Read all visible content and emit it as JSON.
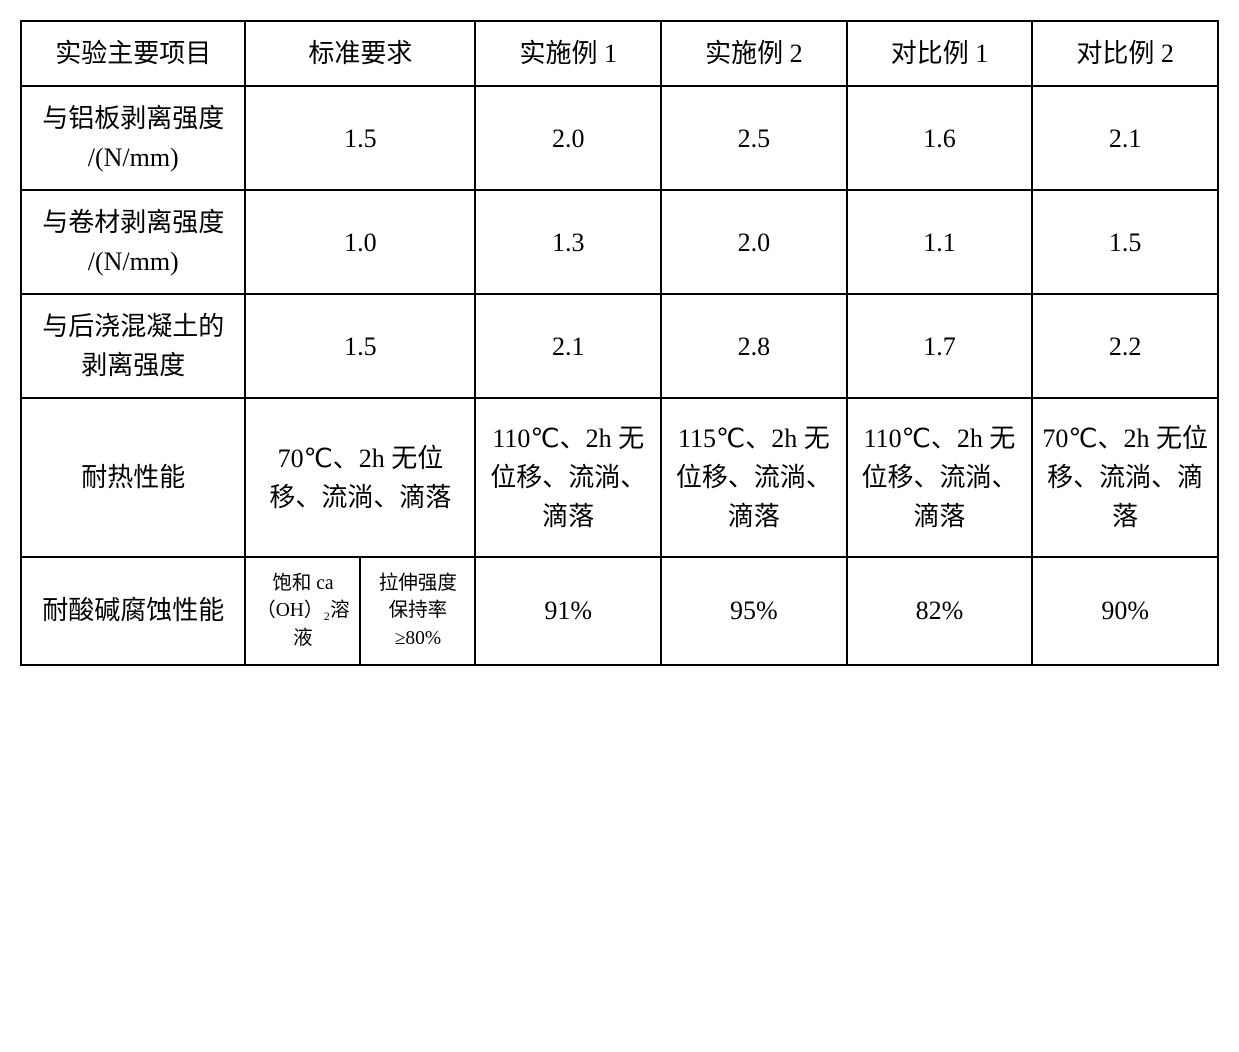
{
  "table": {
    "columns": {
      "main_item": "实验主要项目",
      "standard": "标准要求",
      "example1": "实施例 1",
      "example2": "实施例 2",
      "compare1": "对比例 1",
      "compare2": "对比例 2"
    },
    "rows": {
      "row1": {
        "label": "与铝板剥离强度 /(N/mm)",
        "standard": "1.5",
        "ex1": "2.0",
        "ex2": "2.5",
        "cmp1": "1.6",
        "cmp2": "2.1"
      },
      "row2": {
        "label": "与卷材剥离强度 /(N/mm)",
        "standard": "1.0",
        "ex1": "1.3",
        "ex2": "2.0",
        "cmp1": "1.1",
        "cmp2": "1.5"
      },
      "row3": {
        "label": "与后浇混凝土的剥离强度",
        "standard": "1.5",
        "ex1": "2.1",
        "ex2": "2.8",
        "cmp1": "1.7",
        "cmp2": "2.2"
      },
      "row4": {
        "label": "耐热性能",
        "standard": "70℃、2h 无位移、流淌、滴落",
        "ex1": "110℃、2h 无位移、流淌、滴落",
        "ex2": "115℃、2h 无位移、流淌、滴落",
        "cmp1": "110℃、2h 无位移、流淌、滴落",
        "cmp2": "70℃、2h 无位移、流淌、滴落"
      },
      "row5": {
        "label": "耐酸碱腐蚀性能",
        "standard_a": "饱和 ca（OH）₂溶液",
        "standard_b": "拉伸强度保持率≥80%",
        "ex1": "91%",
        "ex2": "95%",
        "cmp1": "82%",
        "cmp2": "90%"
      }
    },
    "styling": {
      "border_color": "#000000",
      "border_width": 2,
      "background_color": "#ffffff",
      "text_color": "#000000",
      "font_family": "SimSun",
      "base_font_size": 26,
      "small_font_size": 19.5,
      "column_widths": {
        "main": "16.2%",
        "standard_sub": "8.3%",
        "data": "13.4%"
      }
    }
  }
}
